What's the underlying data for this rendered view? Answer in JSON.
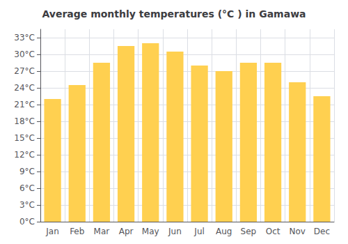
{
  "chart_data": {
    "type": "bar",
    "title": "Average monthly temperatures (°C ) in Gamawa",
    "categories": [
      "Jan",
      "Feb",
      "Mar",
      "Apr",
      "May",
      "Jun",
      "Jul",
      "Aug",
      "Sep",
      "Oct",
      "Nov",
      "Dec"
    ],
    "values": [
      22,
      24.5,
      28.5,
      31.5,
      32,
      30.5,
      28,
      27,
      28.5,
      28.5,
      25,
      22.5
    ],
    "color": "#FFD050",
    "ylim": [
      0,
      34.5
    ],
    "yticks": [
      {
        "value": 0,
        "label": "0°C"
      },
      {
        "value": 3,
        "label": "3°C"
      },
      {
        "value": 6,
        "label": "6°C"
      },
      {
        "value": 9,
        "label": "9°C"
      },
      {
        "value": 12,
        "label": "12°C"
      },
      {
        "value": 15,
        "label": "15°C"
      },
      {
        "value": 18,
        "label": "18°C"
      },
      {
        "value": 21,
        "label": "21°C"
      },
      {
        "value": 24,
        "label": "24°C"
      },
      {
        "value": 27,
        "label": "27°C"
      },
      {
        "value": 30,
        "label": "30°C"
      },
      {
        "value": 33,
        "label": "33°C"
      }
    ],
    "grid": true
  }
}
